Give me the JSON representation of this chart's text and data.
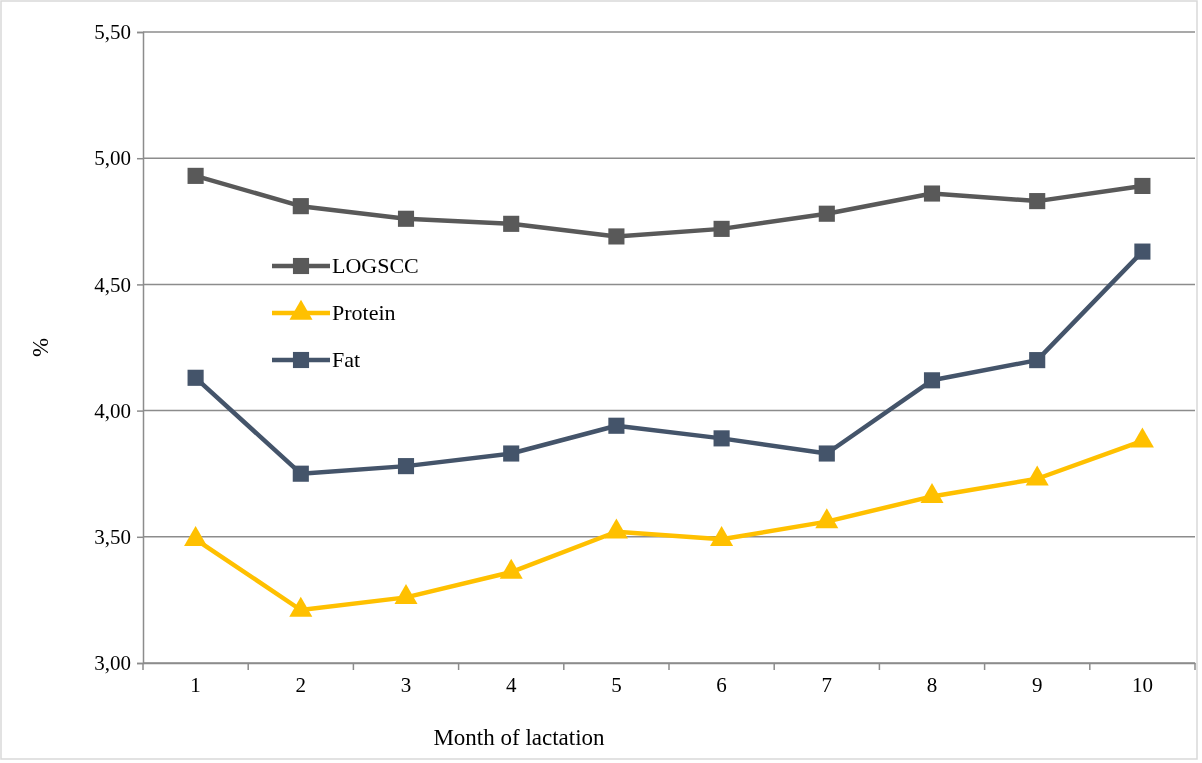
{
  "chart_data": {
    "type": "line",
    "xlabel": "Month of lactation",
    "ylabel": "%",
    "categories": [
      "1",
      "2",
      "3",
      "4",
      "5",
      "6",
      "7",
      "8",
      "9",
      "10"
    ],
    "series": [
      {
        "name": "LOGSCC",
        "color": "#595959",
        "marker": "square",
        "values": [
          4.93,
          4.81,
          4.76,
          4.74,
          4.69,
          4.72,
          4.78,
          4.86,
          4.83,
          4.89
        ]
      },
      {
        "name": "Protein",
        "color": "#ffc000",
        "marker": "triangle",
        "values": [
          3.49,
          3.21,
          3.26,
          3.36,
          3.52,
          3.49,
          3.56,
          3.66,
          3.73,
          3.88
        ]
      },
      {
        "name": "Fat",
        "color": "#44546a",
        "marker": "square",
        "values": [
          4.13,
          3.75,
          3.78,
          3.83,
          3.94,
          3.89,
          3.83,
          4.12,
          4.2,
          4.63
        ]
      }
    ],
    "ylim": [
      3,
      5.5
    ],
    "yticks": [
      {
        "value": 3,
        "label": "3,00"
      },
      {
        "value": 3.5,
        "label": "3,50"
      },
      {
        "value": 4,
        "label": "4,00"
      },
      {
        "value": 4.5,
        "label": "4,50"
      },
      {
        "value": 5,
        "label": "5,00"
      },
      {
        "value": 5.5,
        "label": "5,50"
      }
    ],
    "grid": "y",
    "legend": "left"
  }
}
